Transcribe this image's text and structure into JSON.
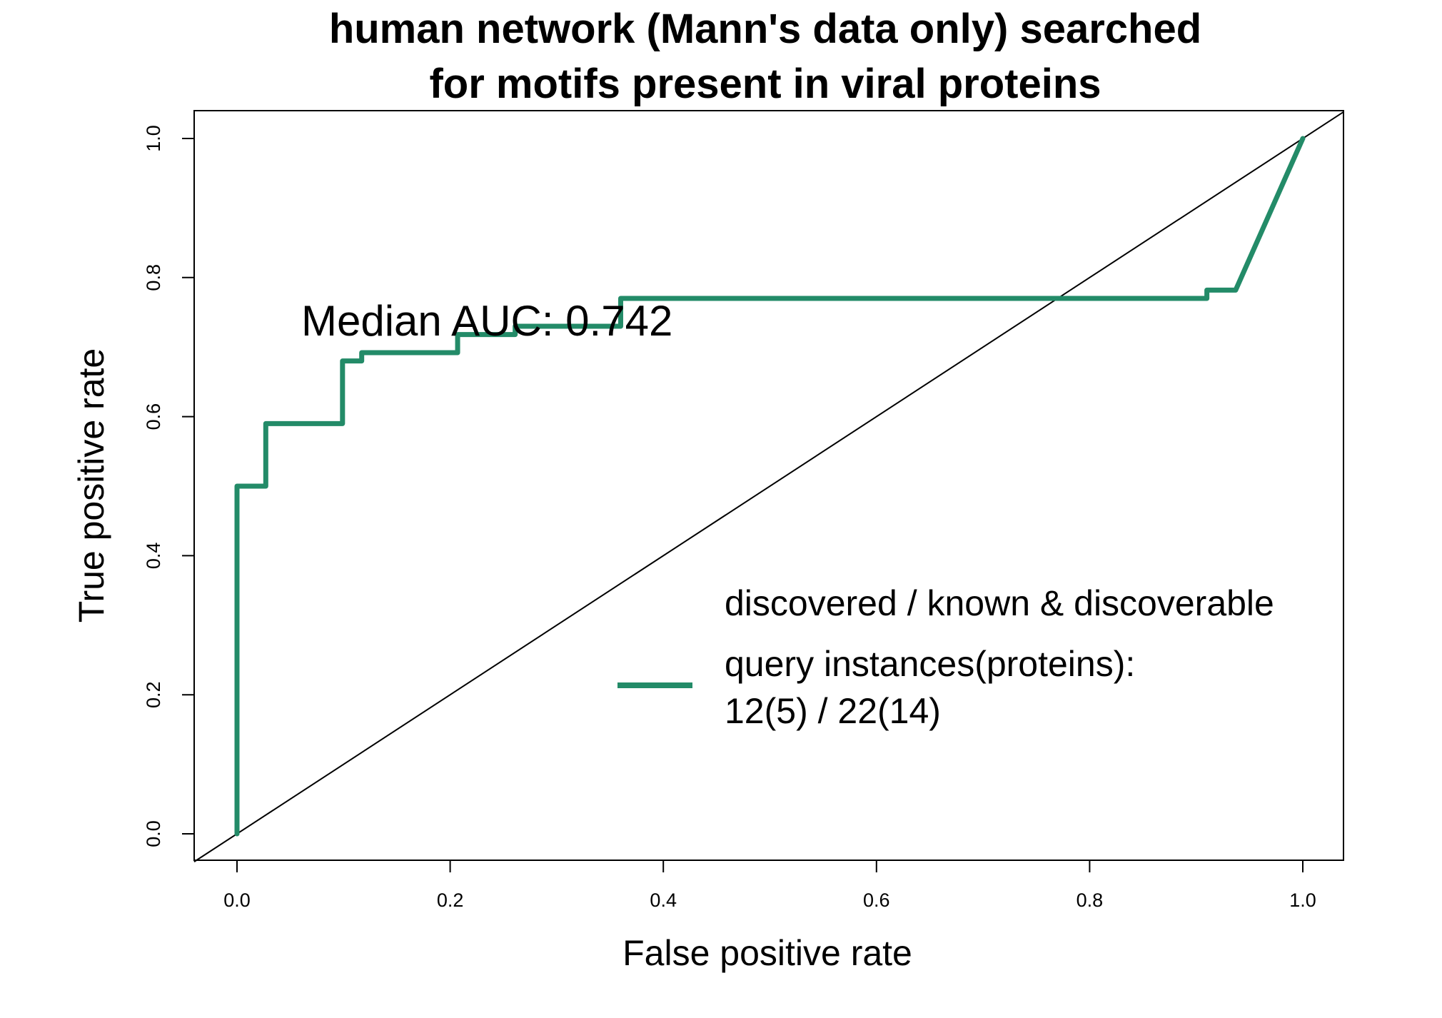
{
  "chart_data": {
    "type": "line",
    "title": [
      "human network (Mann's data only) searched",
      "for motifs present in viral proteins"
    ],
    "xlabel": "False positive rate",
    "ylabel": "True positive rate",
    "xlim": [
      0,
      1
    ],
    "ylim": [
      0,
      1
    ],
    "xticks": [
      "0.0",
      "0.2",
      "0.4",
      "0.6",
      "0.8",
      "1.0"
    ],
    "yticks": [
      "0.0",
      "0.2",
      "0.4",
      "0.6",
      "0.8",
      "1.0"
    ],
    "grid": false,
    "annotation": "Median AUC: 0.742",
    "legend": {
      "placement": "bottom-right",
      "header": "discovered / known & discoverable",
      "entries": [
        "query instances(proteins):",
        "12(5) / 22(14)"
      ]
    },
    "diagonal": {
      "x": [
        0,
        1
      ],
      "y": [
        0,
        1
      ],
      "color": "#000000"
    },
    "series": [
      {
        "color": "#238b68",
        "x": [
          0,
          0,
          0.027,
          0.027,
          0.099,
          0.099,
          0.117,
          0.117,
          0.207,
          0.207,
          0.261,
          0.261,
          0.36,
          0.36,
          0.91,
          0.91,
          0.937,
          1.0
        ],
        "y": [
          0,
          0.5,
          0.5,
          0.59,
          0.59,
          0.68,
          0.68,
          0.692,
          0.692,
          0.718,
          0.718,
          0.73,
          0.73,
          0.77,
          0.77,
          0.782,
          0.782,
          1.0
        ]
      }
    ]
  }
}
